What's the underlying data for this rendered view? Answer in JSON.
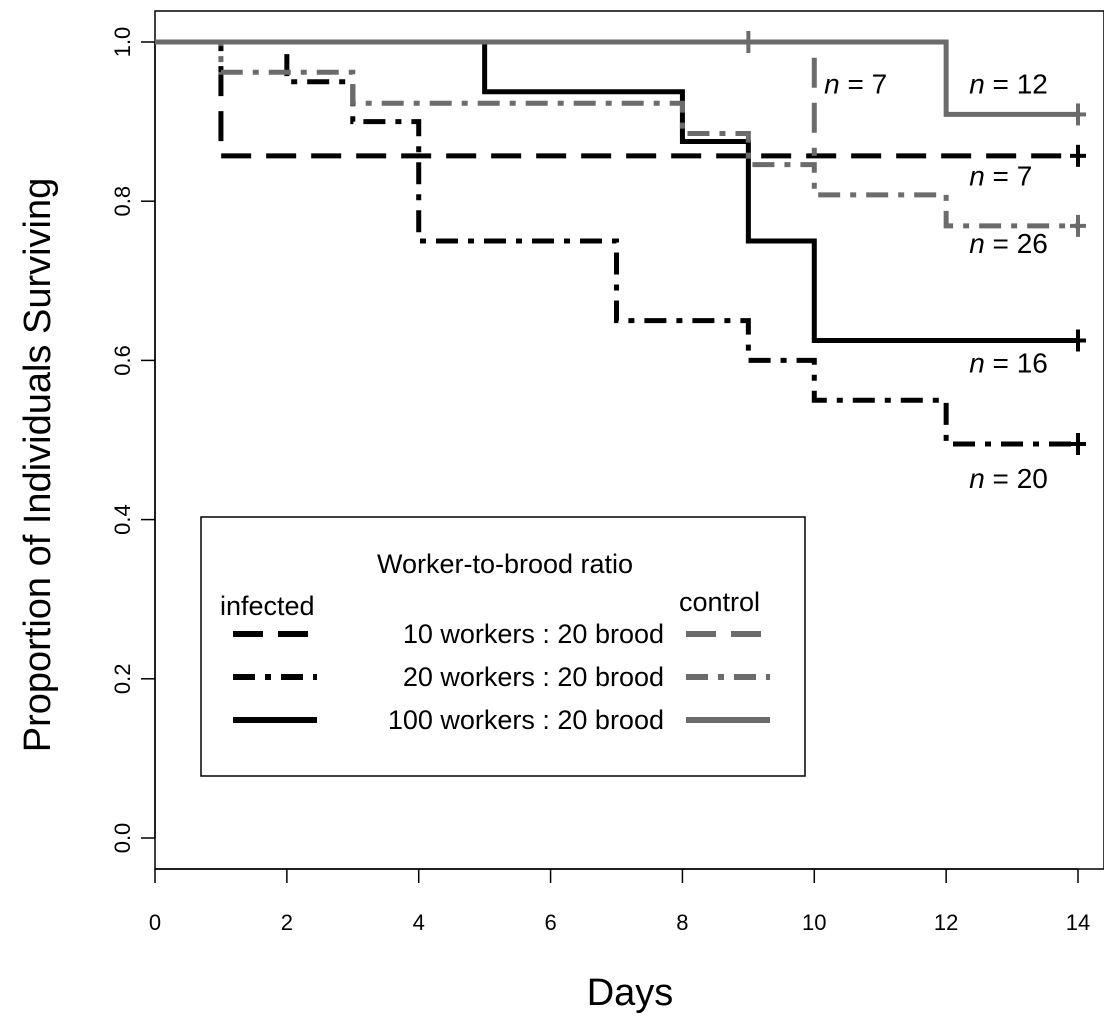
{
  "chart_data": {
    "type": "line",
    "step": true,
    "xlabel": "Days",
    "ylabel": "Proportion of Individuals Surviving",
    "xlim": [
      0,
      14
    ],
    "ylim": [
      0,
      1
    ],
    "xticks": [
      "0",
      "2",
      "4",
      "6",
      "8",
      "10",
      "12",
      "14"
    ],
    "yticks": [
      "0.0",
      "0.2",
      "0.4",
      "0.6",
      "0.8",
      "1.0"
    ],
    "grid": false,
    "legend": {
      "title": "Worker-to-brood ratio",
      "infected_heading": "infected",
      "control_heading": "control",
      "entries": [
        "10 workers : 20 brood",
        "20 workers : 20 brood",
        "100 workers : 20 brood"
      ],
      "placement": "lower-left"
    },
    "series": [
      {
        "group": "infected",
        "ratio": "10 workers : 20 brood",
        "color": "#000000",
        "style": "dashed",
        "x": [
          0,
          1,
          14
        ],
        "y": [
          1.0,
          0.857,
          0.857
        ],
        "censor": [
          [
            14,
            0.857
          ]
        ],
        "n_label": {
          "prefix": "n",
          "rest": " = 7"
        }
      },
      {
        "group": "infected",
        "ratio": "20 workers : 20 brood",
        "color": "#000000",
        "style": "dash-dot",
        "x": [
          0,
          2,
          3,
          4,
          7,
          9,
          10,
          12,
          14
        ],
        "y": [
          1.0,
          0.95,
          0.9,
          0.75,
          0.65,
          0.6,
          0.55,
          0.495,
          0.495
        ],
        "censor": [
          [
            14,
            0.495
          ]
        ],
        "n_label": {
          "prefix": "n",
          "rest": " = 20"
        }
      },
      {
        "group": "infected",
        "ratio": "100 workers : 20 brood",
        "color": "#000000",
        "style": "solid",
        "x": [
          0,
          5,
          8,
          9,
          10,
          14
        ],
        "y": [
          1.0,
          0.9375,
          0.875,
          0.75,
          0.625,
          0.625
        ],
        "censor": [
          [
            14,
            0.625
          ]
        ],
        "n_label": {
          "prefix": "n",
          "rest": " = 16"
        }
      },
      {
        "group": "control",
        "ratio": "10 workers : 20 brood",
        "color": "#6b6b6b",
        "style": "dashed",
        "x": [
          0,
          10
        ],
        "y": [
          1.0,
          0.857
        ],
        "censor": [
          [
            9,
            1.0
          ]
        ],
        "n_label": {
          "prefix": "n",
          "rest": " = 7"
        }
      },
      {
        "group": "control",
        "ratio": "20 workers : 20 brood",
        "color": "#6b6b6b",
        "style": "dash-dot",
        "x": [
          0,
          1,
          3,
          8,
          9,
          10,
          12,
          14
        ],
        "y": [
          1.0,
          0.962,
          0.923,
          0.885,
          0.846,
          0.808,
          0.769,
          0.769
        ],
        "censor": [
          [
            14,
            0.769
          ]
        ],
        "n_label": {
          "prefix": "n",
          "rest": " = 26"
        }
      },
      {
        "group": "control",
        "ratio": "100 workers : 20 brood",
        "color": "#6b6b6b",
        "style": "solid",
        "x": [
          0,
          12,
          14
        ],
        "y": [
          1.0,
          0.909,
          0.909
        ],
        "censor": [
          [
            14,
            0.909
          ]
        ],
        "n_label": {
          "prefix": "n",
          "rest": " = 12"
        }
      }
    ]
  }
}
